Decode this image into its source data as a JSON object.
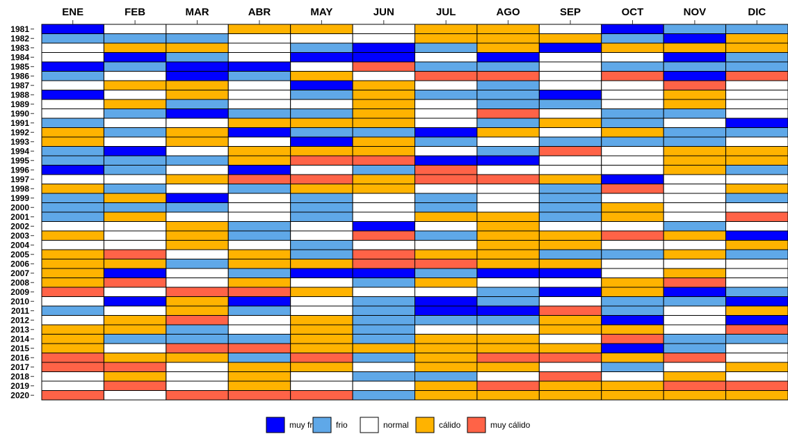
{
  "chart_data": {
    "type": "heatmap",
    "x_categories": [
      "ENE",
      "FEB",
      "MAR",
      "ABR",
      "MAY",
      "JUN",
      "JUL",
      "AGO",
      "SEP",
      "OCT",
      "NOV",
      "DIC"
    ],
    "y_categories": [
      "1981",
      "1982",
      "1983",
      "1984",
      "1985",
      "1986",
      "1987",
      "1988",
      "1989",
      "1990",
      "1991",
      "1992",
      "1993",
      "1994",
      "1995",
      "1996",
      "1997",
      "1998",
      "1999",
      "2000",
      "2001",
      "2002",
      "2003",
      "2004",
      "2005",
      "2006",
      "2007",
      "2008",
      "2009",
      "2010",
      "2011",
      "2012",
      "2013",
      "2014",
      "2015",
      "2016",
      "2017",
      "2018",
      "2019",
      "2020"
    ],
    "legend": [
      {
        "name": "muy frio",
        "color": "#0000ff"
      },
      {
        "name": "frio",
        "color": "#5fa8e8"
      },
      {
        "name": "normal",
        "color": "#ffffff"
      },
      {
        "name": "cálido",
        "color": "#ffb300"
      },
      {
        "name": "muy cálido",
        "color": "#ff6347"
      }
    ],
    "values": [
      [
        0,
        2,
        2,
        3,
        3,
        2,
        3,
        3,
        2,
        0,
        1,
        1
      ],
      [
        1,
        1,
        1,
        2,
        2,
        2,
        3,
        3,
        3,
        1,
        0,
        3
      ],
      [
        2,
        3,
        3,
        2,
        1,
        0,
        1,
        3,
        0,
        3,
        3,
        3
      ],
      [
        2,
        0,
        1,
        2,
        0,
        0,
        2,
        0,
        2,
        2,
        0,
        1
      ],
      [
        0,
        1,
        0,
        0,
        2,
        4,
        1,
        1,
        2,
        1,
        1,
        1
      ],
      [
        1,
        2,
        0,
        1,
        3,
        2,
        4,
        4,
        2,
        4,
        0,
        4
      ],
      [
        2,
        3,
        3,
        2,
        0,
        3,
        2,
        1,
        2,
        2,
        4,
        2
      ],
      [
        0,
        2,
        3,
        2,
        1,
        3,
        1,
        1,
        0,
        2,
        3,
        2
      ],
      [
        2,
        3,
        1,
        2,
        2,
        3,
        2,
        1,
        1,
        2,
        3,
        2
      ],
      [
        2,
        1,
        0,
        1,
        1,
        3,
        2,
        4,
        2,
        1,
        1,
        2
      ],
      [
        1,
        2,
        2,
        3,
        3,
        3,
        2,
        1,
        3,
        1,
        2,
        0
      ],
      [
        3,
        1,
        3,
        0,
        1,
        1,
        0,
        3,
        2,
        3,
        1,
        1
      ],
      [
        3,
        2,
        3,
        2,
        0,
        3,
        1,
        2,
        1,
        1,
        1,
        2
      ],
      [
        1,
        0,
        2,
        3,
        3,
        3,
        2,
        1,
        4,
        2,
        3,
        3
      ],
      [
        1,
        1,
        1,
        3,
        4,
        4,
        0,
        0,
        2,
        2,
        3,
        3
      ],
      [
        0,
        1,
        2,
        0,
        2,
        1,
        4,
        2,
        2,
        2,
        3,
        1
      ],
      [
        2,
        2,
        3,
        4,
        4,
        3,
        4,
        4,
        3,
        0,
        2,
        2
      ],
      [
        3,
        1,
        2,
        1,
        3,
        3,
        2,
        2,
        1,
        4,
        2,
        3
      ],
      [
        1,
        3,
        0,
        2,
        1,
        2,
        1,
        2,
        1,
        2,
        2,
        1
      ],
      [
        1,
        1,
        1,
        2,
        1,
        2,
        1,
        2,
        1,
        3,
        2,
        2
      ],
      [
        1,
        3,
        2,
        2,
        1,
        2,
        3,
        3,
        1,
        3,
        2,
        4
      ],
      [
        2,
        2,
        3,
        1,
        2,
        0,
        2,
        3,
        2,
        2,
        1,
        2
      ],
      [
        3,
        2,
        3,
        1,
        2,
        4,
        1,
        3,
        3,
        4,
        3,
        0
      ],
      [
        2,
        2,
        3,
        2,
        1,
        2,
        2,
        3,
        3,
        2,
        2,
        3
      ],
      [
        3,
        4,
        2,
        3,
        1,
        4,
        3,
        3,
        1,
        1,
        3,
        1
      ],
      [
        3,
        3,
        1,
        3,
        3,
        4,
        4,
        3,
        3,
        2,
        2,
        2
      ],
      [
        3,
        0,
        2,
        1,
        0,
        0,
        1,
        0,
        0,
        2,
        3,
        2
      ],
      [
        3,
        4,
        2,
        3,
        2,
        1,
        3,
        2,
        2,
        3,
        4,
        2
      ],
      [
        4,
        2,
        4,
        4,
        3,
        2,
        2,
        1,
        0,
        3,
        0,
        1
      ],
      [
        2,
        0,
        3,
        0,
        2,
        1,
        0,
        1,
        2,
        1,
        1,
        0
      ],
      [
        1,
        2,
        3,
        1,
        2,
        1,
        0,
        0,
        4,
        1,
        2,
        3
      ],
      [
        2,
        3,
        4,
        2,
        3,
        1,
        1,
        1,
        3,
        0,
        2,
        0
      ],
      [
        3,
        3,
        1,
        2,
        3,
        1,
        2,
        2,
        3,
        3,
        2,
        4
      ],
      [
        3,
        1,
        1,
        1,
        3,
        1,
        3,
        3,
        2,
        4,
        1,
        1
      ],
      [
        3,
        2,
        4,
        4,
        3,
        3,
        3,
        3,
        3,
        0,
        1,
        2
      ],
      [
        4,
        3,
        3,
        1,
        4,
        1,
        3,
        4,
        4,
        3,
        4,
        2
      ],
      [
        4,
        4,
        2,
        3,
        3,
        2,
        3,
        3,
        2,
        1,
        2,
        3
      ],
      [
        2,
        3,
        2,
        3,
        2,
        1,
        1,
        2,
        4,
        2,
        3,
        2
      ],
      [
        2,
        4,
        2,
        3,
        2,
        2,
        3,
        4,
        3,
        3,
        4,
        4
      ],
      [
        4,
        2,
        4,
        4,
        4,
        1,
        3,
        3,
        3,
        3,
        3,
        3
      ]
    ]
  }
}
